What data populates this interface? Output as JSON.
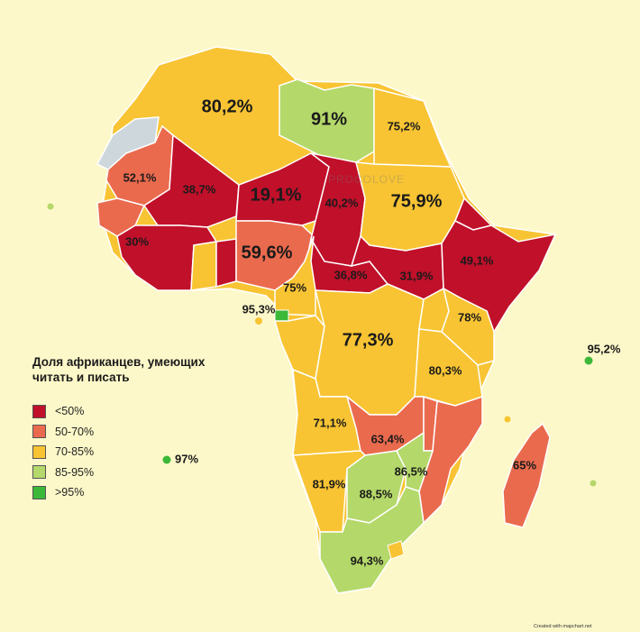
{
  "legend": {
    "title": "Доля африканцев, умеющих читать и писать",
    "items": [
      {
        "label": "<50%",
        "color": "#c0102a"
      },
      {
        "label": "50-70%",
        "color": "#ea6a4e"
      },
      {
        "label": "70-85%",
        "color": "#f8c433"
      },
      {
        "label": "85-95%",
        "color": "#b4d86a"
      },
      {
        "label": ">95%",
        "color": "#3cb839"
      }
    ]
  },
  "regions": [
    {
      "id": "algeria",
      "value": "80,2%",
      "category": "70-85%"
    },
    {
      "id": "libya",
      "value": "91%",
      "category": "85-95%"
    },
    {
      "id": "egypt",
      "value": "75,2%",
      "category": "70-85%"
    },
    {
      "id": "mauritania",
      "value": "52,1%",
      "category": "50-70%"
    },
    {
      "id": "mali",
      "value": "38,7%",
      "category": "<50%"
    },
    {
      "id": "niger",
      "value": "19,1%",
      "category": "<50%"
    },
    {
      "id": "chad",
      "value": "40,2%",
      "category": "<50%"
    },
    {
      "id": "sudan",
      "value": "75,9%",
      "category": "70-85%"
    },
    {
      "id": "west-coast",
      "value": "30%",
      "category": "<50%"
    },
    {
      "id": "nigeria",
      "value": "59,6%",
      "category": "50-70%"
    },
    {
      "id": "car",
      "value": "36,8%",
      "category": "<50%"
    },
    {
      "id": "south-sudan",
      "value": "31,9%",
      "category": "<50%"
    },
    {
      "id": "ethiopia",
      "value": "49,1%",
      "category": "<50%"
    },
    {
      "id": "cameroon",
      "value": "75%",
      "category": "70-85%"
    },
    {
      "id": "equatorial-guinea",
      "value": "95,3%",
      "category": ">95%"
    },
    {
      "id": "drc",
      "value": "77,3%",
      "category": "70-85%"
    },
    {
      "id": "kenya",
      "value": "78%",
      "category": "70-85%"
    },
    {
      "id": "tanzania",
      "value": "80,3%",
      "category": "70-85%"
    },
    {
      "id": "angola",
      "value": "71,1%",
      "category": "70-85%"
    },
    {
      "id": "zambia",
      "value": "63,4%",
      "category": "50-70%"
    },
    {
      "id": "zimbabwe",
      "value": "86,5%",
      "category": "85-95%"
    },
    {
      "id": "namibia",
      "value": "81,9%",
      "category": "70-85%"
    },
    {
      "id": "botswana",
      "value": "88,5%",
      "category": "85-95%"
    },
    {
      "id": "south-africa",
      "value": "94,3%",
      "category": "85-95%"
    },
    {
      "id": "madagascar",
      "value": "65%",
      "category": "50-70%"
    },
    {
      "id": "seychelles",
      "value": "95,2%",
      "category": ">95%"
    },
    {
      "id": "saint-helena",
      "value": "97%",
      "category": ">95%"
    }
  ],
  "watermark": "PROCOLOVE",
  "credit": "Created with mapchart.net"
}
